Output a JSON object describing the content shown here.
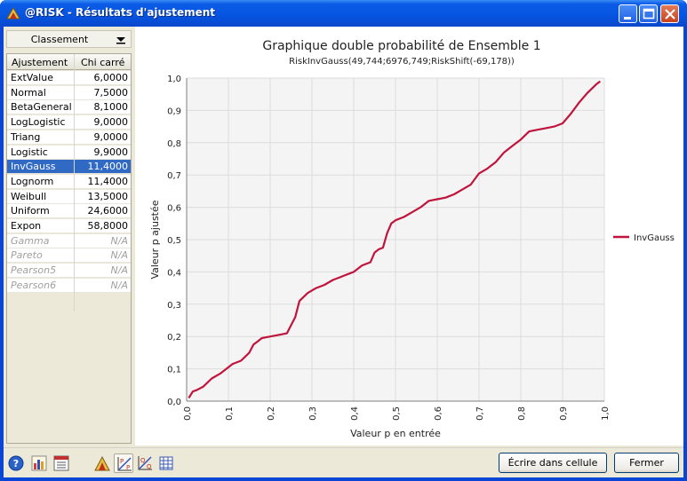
{
  "window": {
    "title": "@RISK - Résultats d'ajustement"
  },
  "sidebar": {
    "sort_label": "Classement",
    "columns": [
      "Ajustement",
      "Chi carré"
    ],
    "rows": [
      {
        "name": "ExtValue",
        "value": "6,0000",
        "selected": false,
        "available": true
      },
      {
        "name": "Normal",
        "value": "7,5000",
        "selected": false,
        "available": true
      },
      {
        "name": "BetaGeneral",
        "value": "8,1000",
        "selected": false,
        "available": true
      },
      {
        "name": "LogLogistic",
        "value": "9,0000",
        "selected": false,
        "available": true
      },
      {
        "name": "Triang",
        "value": "9,0000",
        "selected": false,
        "available": true
      },
      {
        "name": "Logistic",
        "value": "9,9000",
        "selected": false,
        "available": true
      },
      {
        "name": "InvGauss",
        "value": "11,4000",
        "selected": true,
        "available": true
      },
      {
        "name": "Lognorm",
        "value": "11,4000",
        "selected": false,
        "available": true
      },
      {
        "name": "Weibull",
        "value": "13,5000",
        "selected": false,
        "available": true
      },
      {
        "name": "Uniform",
        "value": "24,6000",
        "selected": false,
        "available": true
      },
      {
        "name": "Expon",
        "value": "58,8000",
        "selected": false,
        "available": true
      },
      {
        "name": "Gamma",
        "value": "N/A",
        "selected": false,
        "available": false
      },
      {
        "name": "Pareto",
        "value": "N/A",
        "selected": false,
        "available": false
      },
      {
        "name": "Pearson5",
        "value": "N/A",
        "selected": false,
        "available": false
      },
      {
        "name": "Pearson6",
        "value": "N/A",
        "selected": false,
        "available": false
      }
    ]
  },
  "chart_data": {
    "type": "line",
    "title": "Graphique double probabilité de Ensemble 1",
    "subtitle": "RiskInvGauss(49,744;6976,749;RiskShift(-69,178))",
    "xlabel": "Valeur p en entrée",
    "ylabel": "Valeur p ajustée",
    "xlim": [
      0,
      1
    ],
    "ylim": [
      0,
      1
    ],
    "x_ticks": [
      "0,0",
      "0,1",
      "0,2",
      "0,3",
      "0,4",
      "0,5",
      "0,6",
      "0,7",
      "0,8",
      "0,9",
      "1,0"
    ],
    "y_ticks": [
      "0,0",
      "0,1",
      "0,2",
      "0,3",
      "0,4",
      "0,5",
      "0,6",
      "0,7",
      "0,8",
      "0,9",
      "1,0"
    ],
    "grid": true,
    "legend": "right",
    "series": [
      {
        "name": "InvGauss",
        "color": "#c0143c",
        "x": [
          0.005,
          0.015,
          0.025,
          0.04,
          0.06,
          0.08,
          0.095,
          0.11,
          0.13,
          0.15,
          0.16,
          0.17,
          0.18,
          0.2,
          0.22,
          0.24,
          0.26,
          0.27,
          0.29,
          0.31,
          0.33,
          0.35,
          0.37,
          0.38,
          0.39,
          0.4,
          0.41,
          0.42,
          0.44,
          0.45,
          0.46,
          0.47,
          0.48,
          0.49,
          0.5,
          0.52,
          0.54,
          0.56,
          0.58,
          0.6,
          0.62,
          0.64,
          0.66,
          0.68,
          0.7,
          0.72,
          0.74,
          0.76,
          0.78,
          0.8,
          0.82,
          0.84,
          0.86,
          0.88,
          0.9,
          0.92,
          0.94,
          0.96,
          0.98,
          0.99
        ],
        "y": [
          0.01,
          0.03,
          0.035,
          0.045,
          0.07,
          0.085,
          0.1,
          0.115,
          0.125,
          0.15,
          0.175,
          0.185,
          0.195,
          0.2,
          0.205,
          0.21,
          0.26,
          0.31,
          0.335,
          0.35,
          0.36,
          0.375,
          0.385,
          0.39,
          0.395,
          0.4,
          0.41,
          0.42,
          0.43,
          0.46,
          0.47,
          0.475,
          0.52,
          0.55,
          0.56,
          0.57,
          0.585,
          0.6,
          0.62,
          0.625,
          0.63,
          0.64,
          0.655,
          0.67,
          0.705,
          0.72,
          0.74,
          0.77,
          0.79,
          0.81,
          0.835,
          0.84,
          0.845,
          0.85,
          0.86,
          0.89,
          0.925,
          0.955,
          0.98,
          0.99
        ]
      }
    ]
  },
  "toolbar": {
    "write_label": "Écrire dans cellule",
    "close_label": "Fermer"
  }
}
